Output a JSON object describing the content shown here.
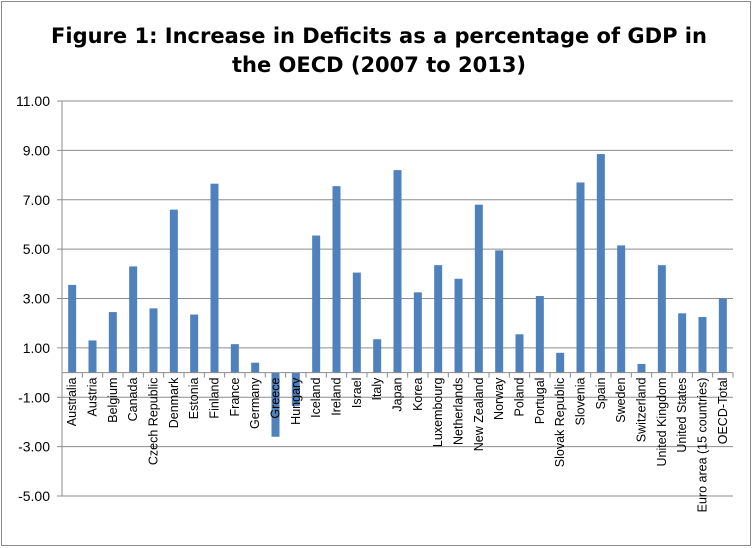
{
  "chart_data": {
    "type": "bar",
    "title": "Figure 1: Increase in Deficits as a percentage of GDP in the OECD (2007 to 2013)",
    "xlabel": "",
    "ylabel": "",
    "ylim": [
      -5,
      11
    ],
    "yticks": [
      "11.00",
      "9.00",
      "7.00",
      "5.00",
      "3.00",
      "1.00",
      "-1.00",
      "-3.00",
      "-5.00"
    ],
    "grid": true,
    "legend": "none",
    "bar_color": "#4f81bd",
    "categories": [
      "Australia",
      "Austria",
      "Belgium",
      "Canada",
      "Czech Republic",
      "Denmark",
      "Estonia",
      "Finland",
      "France",
      "Germany",
      "Greece",
      "Hungary",
      "Iceland",
      "Ireland",
      "Israel",
      "Italy",
      "Japan",
      "Korea",
      "Luxembourg",
      "Netherlands",
      "New Zealand",
      "Norway",
      "Poland",
      "Portugal",
      "Slovak Republic",
      "Slovenia",
      "Spain",
      "Sweden",
      "Switzerland",
      "United Kingdom",
      "United States",
      "Euro area (15 countries)",
      "OECD-Total"
    ],
    "values": [
      3.55,
      1.3,
      2.45,
      4.3,
      2.6,
      6.6,
      2.35,
      7.65,
      1.15,
      0.4,
      -2.6,
      -1.35,
      5.55,
      7.55,
      4.05,
      1.35,
      8.2,
      3.25,
      4.35,
      3.8,
      6.8,
      4.95,
      1.55,
      3.1,
      0.8,
      7.7,
      8.85,
      5.15,
      0.35,
      4.35,
      2.4,
      2.25,
      3.0
    ]
  }
}
